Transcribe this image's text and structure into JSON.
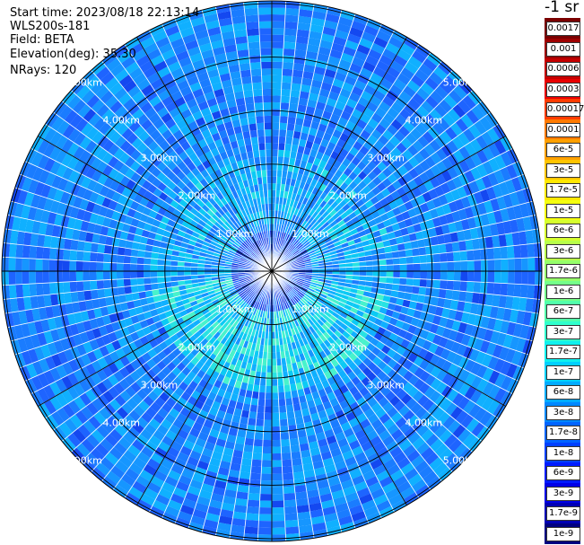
{
  "header": {
    "start_time": "Start time: 2023/08/18 22:13:14",
    "instrument": "WLS200s-181",
    "field": "Field: BETA",
    "elevation": "Elevation(deg): 35.30",
    "nrays": "NRays: 120"
  },
  "colorbar": {
    "title": "-1 sr",
    "labels": [
      "0.0017",
      "0.001",
      "0.0006",
      "0.0003",
      "0.00017",
      "0.0001",
      "6e-5",
      "3e-5",
      "1.7e-5",
      "1e-5",
      "6e-6",
      "3e-6",
      "1.7e-6",
      "1e-6",
      "6e-7",
      "3e-7",
      "1.7e-7",
      "1e-7",
      "6e-8",
      "3e-8",
      "1.7e-8",
      "1e-8",
      "6e-9",
      "3e-9",
      "1.7e-9",
      "1e-9"
    ],
    "colors": [
      "#7a0000",
      "#9e0000",
      "#c40000",
      "#e80000",
      "#ff3c00",
      "#ff7a00",
      "#ffa000",
      "#ffc400",
      "#ffe800",
      "#f4ff10",
      "#d6ff2e",
      "#b8ff4a",
      "#96ff6a",
      "#74ff8a",
      "#52ffaa",
      "#30ffcc",
      "#10f0ee",
      "#00d0ff",
      "#00acff",
      "#0088ff",
      "#0064ff",
      "#0040ff",
      "#001cff",
      "#0000e6",
      "#0000b4",
      "#000080"
    ]
  },
  "ppi": {
    "range_rings": [
      "1.00km",
      "2.00km",
      "3.00km",
      "4.00km",
      "5.00km"
    ],
    "max_range_km": 5.0,
    "n_rays": 120,
    "range_gates": 40,
    "spoke_count": 12
  }
}
